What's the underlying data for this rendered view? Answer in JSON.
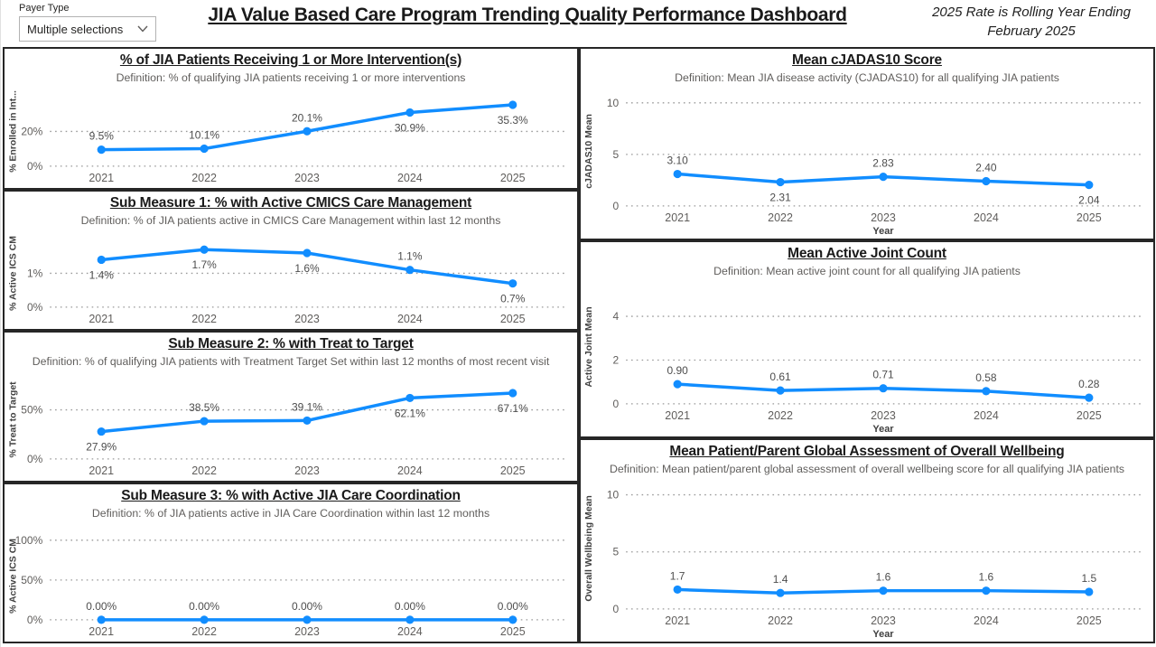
{
  "header": {
    "slicer_label": "Payer Type",
    "slicer_value": "Multiple selections",
    "title": "JIA Value Based Care Program Trending Quality Performance Dashboard",
    "note_line1": "2025 Rate is Rolling Year Ending",
    "note_line2": "February 2025"
  },
  "colors": {
    "line": "#118DFF",
    "grid": "#9a9a9a",
    "axis_text": "#605E5C",
    "axis_title": "#404040",
    "data_label": "#4d4d4d",
    "border": "#262626"
  },
  "icons": {
    "chevron_down": "chevron-down-icon"
  },
  "chart_data": [
    {
      "type": "line",
      "title": "% of JIA Patients Receiving 1 or More Intervention(s)",
      "definition": "Definition: % of qualifying JIA patients receiving 1 or more interventions",
      "ylabel": "% Enrolled in Int...",
      "xlabel": "",
      "categories": [
        "2021",
        "2022",
        "2023",
        "2024",
        "2025"
      ],
      "values": [
        9.5,
        10.1,
        20.1,
        30.9,
        35.3
      ],
      "labels": [
        "9.5%",
        "10.1%",
        "20.1%",
        "30.9%",
        "35.3%"
      ],
      "label_pos": [
        "above",
        "above",
        "above",
        "below",
        "below"
      ],
      "yticks": [
        0,
        20
      ],
      "ytick_labels": [
        "0%",
        "20%"
      ],
      "ylim": [
        0,
        40
      ],
      "grid": true,
      "legend": "none"
    },
    {
      "type": "line",
      "title": "Sub Measure 1: % with Active CMICS Care Management",
      "definition": "Definition: % of JIA patients active in CMICS Care Management within last 12 months",
      "ylabel": "% Active ICS CM",
      "xlabel": "",
      "categories": [
        "2021",
        "2022",
        "2023",
        "2024",
        "2025"
      ],
      "values": [
        1.4,
        1.7,
        1.6,
        1.1,
        0.7
      ],
      "labels": [
        "1.4%",
        "1.7%",
        "1.6%",
        "1.1%",
        "0.7%"
      ],
      "label_pos": [
        "below",
        "below",
        "below",
        "above",
        "below"
      ],
      "yticks": [
        0,
        1
      ],
      "ytick_labels": [
        "0%",
        "1%"
      ],
      "ylim": [
        0,
        2
      ],
      "grid": true,
      "legend": "none"
    },
    {
      "type": "line",
      "title": "Sub Measure 2: % with Treat to Target",
      "definition": "Definition: % of qualifying JIA patients with Treatment Target Set within last 12 months of most recent visit",
      "ylabel": "% Treat to Target",
      "xlabel": "",
      "categories": [
        "2021",
        "2022",
        "2023",
        "2024",
        "2025"
      ],
      "values": [
        27.9,
        38.5,
        39.1,
        62.1,
        67.1
      ],
      "labels": [
        "27.9%",
        "38.5%",
        "39.1%",
        "62.1%",
        "67.1%"
      ],
      "label_pos": [
        "below",
        "above",
        "above",
        "below",
        "below"
      ],
      "yticks": [
        0,
        50
      ],
      "ytick_labels": [
        "0%",
        "50%"
      ],
      "ylim": [
        0,
        80
      ],
      "grid": true,
      "legend": "none"
    },
    {
      "type": "line",
      "title": "Sub Measure 3: % with Active JIA Care Coordination",
      "definition": "Definition: % of JIA patients active in JIA Care Coordination within last 12 months",
      "ylabel": "% Active ICS CM",
      "xlabel": "",
      "categories": [
        "2021",
        "2022",
        "2023",
        "2024",
        "2025"
      ],
      "values": [
        0,
        0,
        0,
        0,
        0
      ],
      "labels": [
        "0.00%",
        "0.00%",
        "0.00%",
        "0.00%",
        "0.00%"
      ],
      "label_pos": [
        "above",
        "above",
        "above",
        "above",
        "above"
      ],
      "yticks": [
        0,
        50,
        100
      ],
      "ytick_labels": [
        "0%",
        "50%",
        "100%"
      ],
      "ylim": [
        0,
        110
      ],
      "grid": true,
      "legend": "none"
    },
    {
      "type": "line",
      "title": "Mean cJADAS10 Score",
      "definition": "Definition: Mean JIA disease activity (CJADAS10) for all qualifying JIA patients",
      "ylabel": "cJADAS10 Mean",
      "xlabel": "Year",
      "categories": [
        "2021",
        "2022",
        "2023",
        "2024",
        "2025"
      ],
      "values": [
        3.1,
        2.31,
        2.83,
        2.4,
        2.04
      ],
      "labels": [
        "3.10",
        "2.31",
        "2.83",
        "2.40",
        "2.04"
      ],
      "label_pos": [
        "above",
        "below",
        "above",
        "above",
        "below"
      ],
      "yticks": [
        0,
        5,
        10
      ],
      "ytick_labels": [
        "0",
        "5",
        "10"
      ],
      "ylim": [
        0,
        10.6
      ],
      "grid": true,
      "legend": "none"
    },
    {
      "type": "line",
      "title": "Mean Active Joint Count",
      "definition": "Definition: Mean active joint count for all qualifying JIA patients",
      "ylabel": "Active Joint Mean",
      "xlabel": "Year",
      "categories": [
        "2021",
        "2022",
        "2023",
        "2024",
        "2025"
      ],
      "values": [
        0.9,
        0.61,
        0.71,
        0.58,
        0.28
      ],
      "labels": [
        "0.90",
        "0.61",
        "0.71",
        "0.58",
        "0.28"
      ],
      "label_pos": [
        "above",
        "above",
        "above",
        "above",
        "above"
      ],
      "yticks": [
        0,
        2,
        4
      ],
      "ytick_labels": [
        "0",
        "2",
        "4"
      ],
      "ylim": [
        0,
        5.2
      ],
      "grid": true,
      "legend": "none"
    },
    {
      "type": "line",
      "title": "Mean Patient/Parent Global Assessment of Overall Wellbeing",
      "definition": "Definition: Mean patient/parent global assessment of overall wellbeing score for all qualifying JIA patients",
      "ylabel": "Overall Wellbeing Mean",
      "xlabel": "Year",
      "categories": [
        "2021",
        "2022",
        "2023",
        "2024",
        "2025"
      ],
      "values": [
        1.7,
        1.4,
        1.6,
        1.6,
        1.5
      ],
      "labels": [
        "1.7",
        "1.4",
        "1.6",
        "1.6",
        "1.5"
      ],
      "label_pos": [
        "above",
        "above",
        "above",
        "above",
        "above"
      ],
      "yticks": [
        0,
        5,
        10
      ],
      "ytick_labels": [
        "0",
        "5",
        "10"
      ],
      "ylim": [
        0,
        10.6
      ],
      "grid": true,
      "legend": "none"
    }
  ]
}
